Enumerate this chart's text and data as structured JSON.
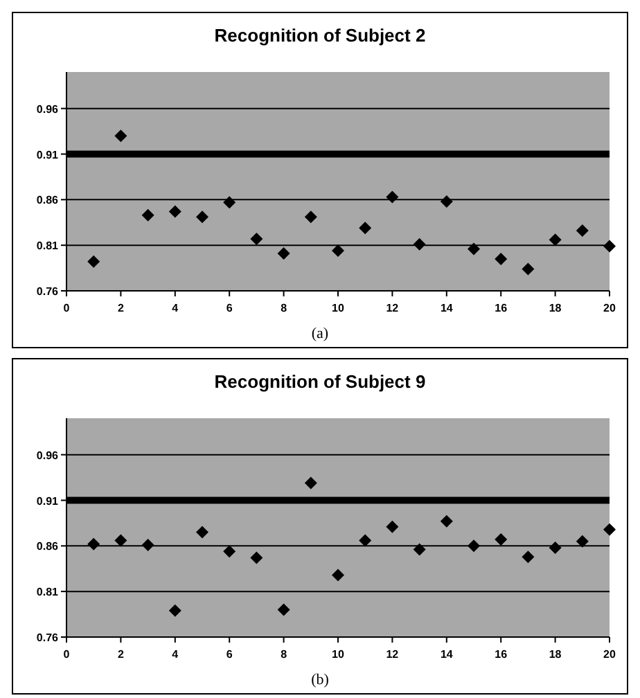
{
  "chart_data": [
    {
      "type": "scatter",
      "title": "Recognition of Subject 2",
      "annotations": [
        "(a)"
      ],
      "x": [
        1,
        2,
        3,
        4,
        5,
        6,
        7,
        8,
        9,
        10,
        11,
        12,
        13,
        14,
        15,
        16,
        17,
        18,
        19,
        20
      ],
      "series": [
        {
          "color": "#000000",
          "values": [
            0.792,
            0.93,
            0.843,
            0.847,
            0.841,
            0.857,
            0.817,
            0.801,
            0.841,
            0.804,
            0.829,
            0.863,
            0.811,
            0.858,
            0.806,
            0.795,
            0.784,
            0.816,
            0.826,
            0.809
          ]
        }
      ],
      "xlim": [
        0,
        20
      ],
      "xticks": [
        0,
        2,
        4,
        6,
        8,
        10,
        12,
        14,
        16,
        18,
        20
      ],
      "ylim": [
        0.76,
        1.0
      ],
      "yticks": [
        0.76,
        0.81,
        0.86,
        0.91,
        0.96
      ],
      "grid": "y",
      "marker": "diamond",
      "ref_lines": [
        {
          "axis": "y",
          "value": 0.91,
          "color": "#000000"
        }
      ]
    },
    {
      "type": "scatter",
      "title": "Recognition of Subject 9",
      "annotations": [
        "(b)"
      ],
      "x": [
        1,
        2,
        3,
        4,
        5,
        6,
        7,
        8,
        9,
        10,
        11,
        12,
        13,
        14,
        15,
        16,
        17,
        18,
        19,
        20
      ],
      "series": [
        {
          "color": "#000000",
          "values": [
            0.862,
            0.866,
            0.861,
            0.789,
            0.875,
            0.854,
            0.847,
            0.79,
            0.929,
            0.828,
            0.866,
            0.881,
            0.856,
            0.887,
            0.86,
            0.867,
            0.848,
            0.858,
            0.865,
            0.878
          ]
        }
      ],
      "xlim": [
        0,
        20
      ],
      "xticks": [
        0,
        2,
        4,
        6,
        8,
        10,
        12,
        14,
        16,
        18,
        20
      ],
      "ylim": [
        0.76,
        1.0
      ],
      "yticks": [
        0.76,
        0.81,
        0.86,
        0.91,
        0.96
      ],
      "grid": "y",
      "marker": "diamond",
      "ref_lines": [
        {
          "axis": "y",
          "value": 0.91,
          "color": "#000000"
        }
      ]
    }
  ]
}
